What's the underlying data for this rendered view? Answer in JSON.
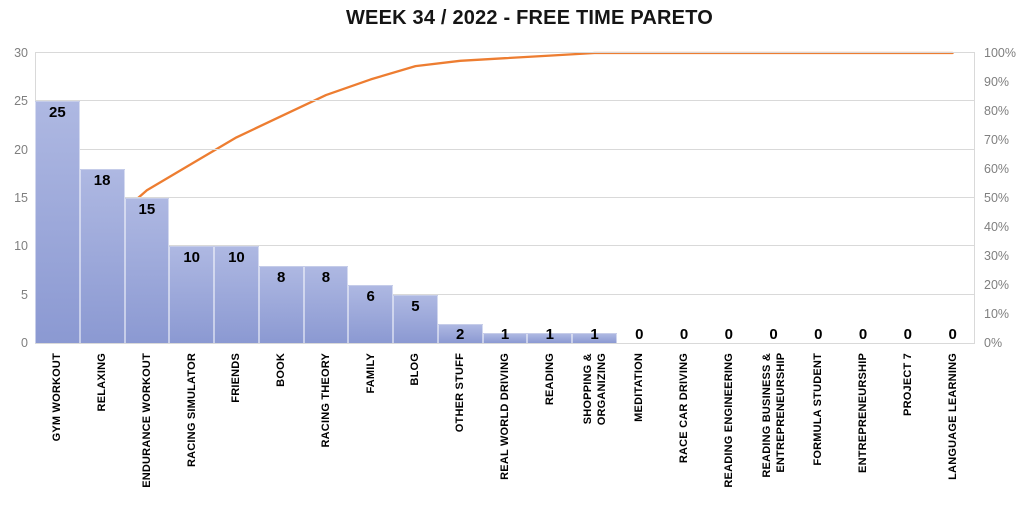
{
  "title": "WEEK 34 / 2022 - FREE TIME PARETO",
  "colors": {
    "bar_gradient_top": "#aeb8e2",
    "bar_gradient_bottom": "#8b99d2",
    "cumulative_line": "#ED7D31",
    "gridline": "#d9d9d9",
    "axis_text": "#7f7f7f",
    "data_label_text": "#000000",
    "title_text": "#151515"
  },
  "chart_data": {
    "type": "bar",
    "subtype": "pareto (bars + cumulative percentage line, no legend)",
    "title": "WEEK 34 / 2022 - FREE TIME PARETO",
    "categories": [
      "GYM WORKOUT",
      "RELAXING",
      "ENDURANCE WORKOUT",
      "RACING SIMULATOR",
      "FRIENDS",
      "BOOK",
      "RACING THEORY",
      "FAMILY",
      "BLOG",
      "OTHER STUFF",
      "REAL WORLD DRIVING",
      "READING",
      "SHOPPING &\nORGANIZING",
      "MEDITATION",
      "RACE CAR DRIVING",
      "READING ENGINEERING",
      "READING BUSINESS &\nENTREPRENEURSHIP",
      "FORMULA STUDENT",
      "ENTREPRENEURSHIP",
      "PROJECT 7",
      "LANGUAGE LEARNING"
    ],
    "series": [
      {
        "name": "hours",
        "type": "bar",
        "values": [
          25,
          18,
          15,
          10,
          10,
          8,
          8,
          6,
          5,
          2,
          1,
          1,
          1,
          0,
          0,
          0,
          0,
          0,
          0,
          0,
          0
        ],
        "data_labels": [
          "25",
          "18",
          "15",
          "10",
          "10",
          "8",
          "8",
          "6",
          "5",
          "2",
          "1",
          "1",
          "1",
          "0",
          "0",
          "0",
          "0",
          "0",
          "0",
          "0",
          "0"
        ]
      },
      {
        "name": "cumulative percent",
        "type": "line",
        "values_pct": [
          22.7,
          39.1,
          52.7,
          61.8,
          70.9,
          78.2,
          85.5,
          90.9,
          95.5,
          97.3,
          98.2,
          99.1,
          100,
          100,
          100,
          100,
          100,
          100,
          100,
          100,
          100
        ]
      }
    ],
    "left_axis": {
      "min": 0,
      "max": 30,
      "step": 5,
      "ticks": [
        "0",
        "5",
        "10",
        "15",
        "20",
        "25",
        "30"
      ]
    },
    "right_axis": {
      "min_label": "0%",
      "max_label": "100%",
      "ticks": [
        "0%",
        "10%",
        "20%",
        "30%",
        "40%",
        "50%",
        "60%",
        "70%",
        "80%",
        "90%",
        "100%"
      ]
    },
    "grid": "horizontal gridlines at left-axis steps of 5",
    "legend": "none"
  }
}
